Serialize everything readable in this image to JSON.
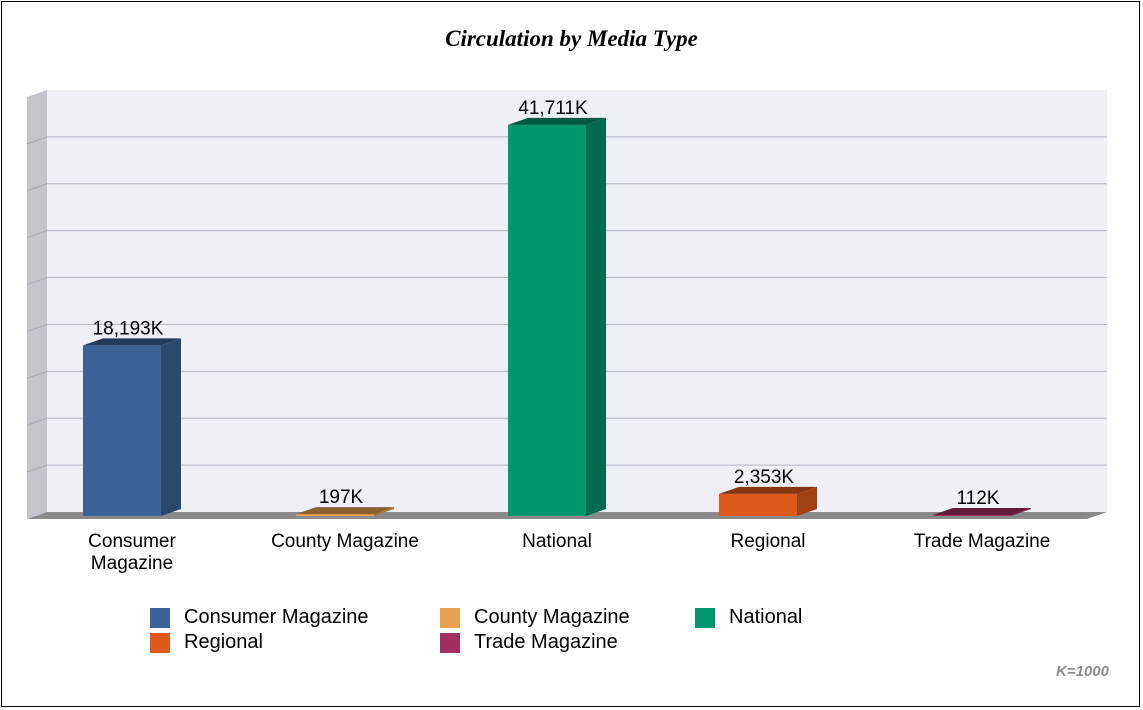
{
  "chart_data": {
    "type": "bar",
    "title": "Circulation by Media Type",
    "categories": [
      "Consumer\nMagazine",
      "County Magazine",
      "National",
      "Regional",
      "Trade Magazine"
    ],
    "series": [
      {
        "values": [
          18193,
          197,
          41711,
          2353,
          112
        ],
        "labels": [
          "18,193K",
          "197K",
          "41,711K",
          "2,353K",
          "112K"
        ],
        "colors": [
          "#3a6296",
          "#eaa250",
          "#00966e",
          "#e05a1e",
          "#a0305f"
        ]
      }
    ],
    "ylim": [
      0,
      45000
    ],
    "grid": true,
    "legend": {
      "placement": "bottom",
      "entries": [
        "Consumer Magazine",
        "County Magazine",
        "National",
        "Regional",
        "Trade Magazine"
      ]
    },
    "footnote": "K=1000"
  }
}
